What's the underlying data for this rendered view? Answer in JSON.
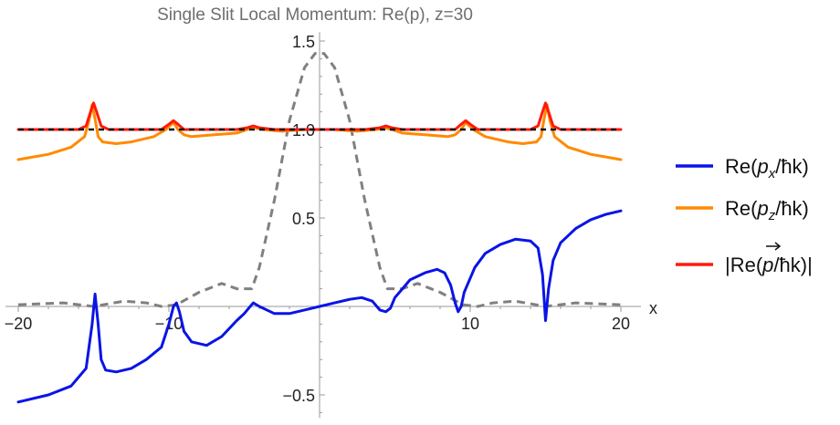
{
  "chart_data": {
    "type": "line",
    "title": "Single Slit Local Momentum: Re(p), z=30",
    "xlabel": "x",
    "ylabel": "",
    "xlim": [
      -20,
      20
    ],
    "ylim": [
      -0.63,
      1.55
    ],
    "x_ticks": [
      {
        "value": -20,
        "label": "-20"
      },
      {
        "value": -10,
        "label": "-10"
      },
      {
        "value": 10,
        "label": "10"
      },
      {
        "value": 20,
        "label": "20"
      }
    ],
    "y_ticks": [
      {
        "value": -0.5,
        "label": "-0.5"
      },
      {
        "value": 0.5,
        "label": "0.5"
      },
      {
        "value": 1.0,
        "label": "1.0"
      },
      {
        "value": 1.5,
        "label": "1.5"
      }
    ],
    "grid": false,
    "legend_position": "right",
    "series": [
      {
        "name": "Re(px/ħk)",
        "color": "#0a14e6",
        "style": "solid",
        "x": [
          -20,
          -18,
          -16.5,
          -15.5,
          -15.1,
          -14.9,
          -14.7,
          -14.5,
          -14.2,
          -13.5,
          -12.5,
          -11.5,
          -10.5,
          -10.0,
          -9.7,
          -9.5,
          -9.3,
          -9.0,
          -8.5,
          -7.5,
          -6.5,
          -5.5,
          -5.0,
          -4.7,
          -4.4,
          -4.0,
          -3.0,
          -2.0,
          -1.0,
          0,
          1.0,
          2.0,
          2.8,
          3.5,
          4.0,
          4.4,
          4.7,
          5.0,
          5.5,
          6.0,
          7.0,
          7.8,
          8.3,
          8.7,
          9.0,
          9.2,
          9.4,
          9.6,
          9.9,
          10.3,
          11.0,
          12.0,
          13.0,
          14.0,
          14.5,
          14.8,
          15.0,
          15.2,
          15.5,
          16.0,
          17.0,
          18.0,
          19.0,
          20.0
        ],
        "y": [
          -0.54,
          -0.5,
          -0.45,
          -0.35,
          -0.1,
          0.07,
          -0.1,
          -0.3,
          -0.36,
          -0.37,
          -0.35,
          -0.3,
          -0.23,
          -0.1,
          0.0,
          0.02,
          -0.03,
          -0.14,
          -0.2,
          -0.22,
          -0.17,
          -0.08,
          -0.04,
          -0.01,
          0.02,
          0.0,
          -0.04,
          -0.04,
          -0.02,
          0.0,
          0.02,
          0.04,
          0.05,
          0.03,
          -0.02,
          -0.03,
          -0.01,
          0.05,
          0.1,
          0.15,
          0.19,
          0.21,
          0.19,
          0.12,
          0.02,
          -0.03,
          0.0,
          0.08,
          0.14,
          0.22,
          0.3,
          0.35,
          0.38,
          0.37,
          0.33,
          0.18,
          -0.08,
          0.1,
          0.26,
          0.36,
          0.44,
          0.49,
          0.52,
          0.54
        ]
      },
      {
        "name": "Re(pz/ħk)",
        "color": "#ff8a00",
        "style": "solid",
        "x": [
          -20,
          -18,
          -16.5,
          -15.6,
          -15.3,
          -15.1,
          -14.9,
          -14.7,
          -14.4,
          -13.5,
          -12.5,
          -11.0,
          -10.2,
          -9.7,
          -9.4,
          -9.0,
          -8.5,
          -7.0,
          -5.5,
          -4.8,
          -4.3,
          -3.8,
          -2.5,
          -1.0,
          0,
          1.0,
          2.5,
          3.8,
          4.3,
          4.8,
          5.5,
          7.0,
          8.5,
          9.0,
          9.4,
          9.7,
          10.2,
          11.0,
          12.5,
          13.5,
          14.4,
          14.7,
          14.9,
          15.1,
          15.3,
          15.6,
          16.5,
          18.0,
          20.0
        ],
        "y": [
          0.83,
          0.86,
          0.9,
          0.96,
          1.05,
          1.14,
          1.06,
          0.96,
          0.93,
          0.92,
          0.93,
          0.96,
          1.0,
          1.04,
          1.0,
          0.97,
          0.96,
          0.97,
          0.98,
          1.0,
          1.01,
          1.0,
          0.99,
          1.0,
          1.0,
          1.0,
          0.99,
          1.0,
          1.01,
          1.0,
          0.98,
          0.97,
          0.96,
          0.97,
          1.0,
          1.04,
          1.0,
          0.96,
          0.93,
          0.92,
          0.93,
          0.96,
          1.06,
          1.14,
          1.05,
          0.96,
          0.9,
          0.86,
          0.83
        ]
      },
      {
        "name": "|Re(p/ħk)|",
        "color": "#ff1a0a",
        "style": "solid",
        "x": [
          -20,
          -16.0,
          -15.5,
          -15.2,
          -15.0,
          -14.8,
          -14.5,
          -14.0,
          -10.5,
          -10.0,
          -9.7,
          -9.4,
          -9.0,
          -5.5,
          -4.8,
          -4.4,
          -4.0,
          -3.0,
          0,
          3.0,
          4.0,
          4.4,
          4.8,
          5.5,
          9.0,
          9.4,
          9.7,
          10.0,
          10.5,
          14.0,
          14.5,
          14.8,
          15.0,
          15.2,
          15.5,
          16.0,
          20.0
        ],
        "y": [
          1.0,
          1.0,
          1.02,
          1.1,
          1.15,
          1.1,
          1.02,
          1.0,
          1.0,
          1.03,
          1.05,
          1.03,
          1.0,
          1.0,
          1.01,
          1.02,
          1.01,
          1.0,
          1.0,
          1.0,
          1.01,
          1.02,
          1.01,
          1.0,
          1.0,
          1.03,
          1.05,
          1.03,
          1.0,
          1.0,
          1.02,
          1.1,
          1.15,
          1.1,
          1.02,
          1.0,
          1.0
        ]
      },
      {
        "name": "",
        "color": "#111111",
        "style": "dashed",
        "x": [
          -20,
          20
        ],
        "y": [
          1.0,
          1.0
        ]
      },
      {
        "name": "",
        "color": "#808080",
        "style": "dashed",
        "x": [
          -20,
          -17,
          -15,
          -13,
          -11.5,
          -10.5,
          -9.5,
          -8.0,
          -6.5,
          -5.5,
          -4.5,
          -4.0,
          -3.0,
          -2.0,
          -1.0,
          -0.3,
          0.3,
          1.0,
          2.0,
          3.0,
          4.0,
          4.5,
          5.5,
          6.5,
          8.0,
          9.5,
          10.5,
          11.5,
          13,
          15,
          17,
          20
        ],
        "y": [
          0.01,
          0.02,
          0.0,
          0.03,
          0.02,
          0.0,
          0.01,
          0.08,
          0.13,
          0.1,
          0.1,
          0.22,
          0.6,
          1.05,
          1.35,
          1.43,
          1.43,
          1.35,
          1.05,
          0.6,
          0.22,
          0.1,
          0.1,
          0.13,
          0.08,
          0.01,
          0.0,
          0.02,
          0.03,
          0.0,
          0.02,
          0.01
        ]
      }
    ]
  },
  "legend": [
    {
      "color": "#0a14e6",
      "parts": [
        {
          "t": "Re("
        },
        {
          "t": "p",
          "i": true
        },
        {
          "t": "x",
          "i": true,
          "sub": true
        },
        {
          "t": "/ħk)"
        }
      ]
    },
    {
      "color": "#ff8a00",
      "parts": [
        {
          "t": "Re("
        },
        {
          "t": "p",
          "i": true
        },
        {
          "t": "z",
          "i": true,
          "sub": true
        },
        {
          "t": "/ħk)"
        }
      ]
    },
    {
      "color": "#ff1a0a",
      "parts": [
        {
          "t": "|Re("
        },
        {
          "t": "p",
          "i": true,
          "vec": true
        },
        {
          "t": "/ħk)|"
        }
      ]
    }
  ]
}
